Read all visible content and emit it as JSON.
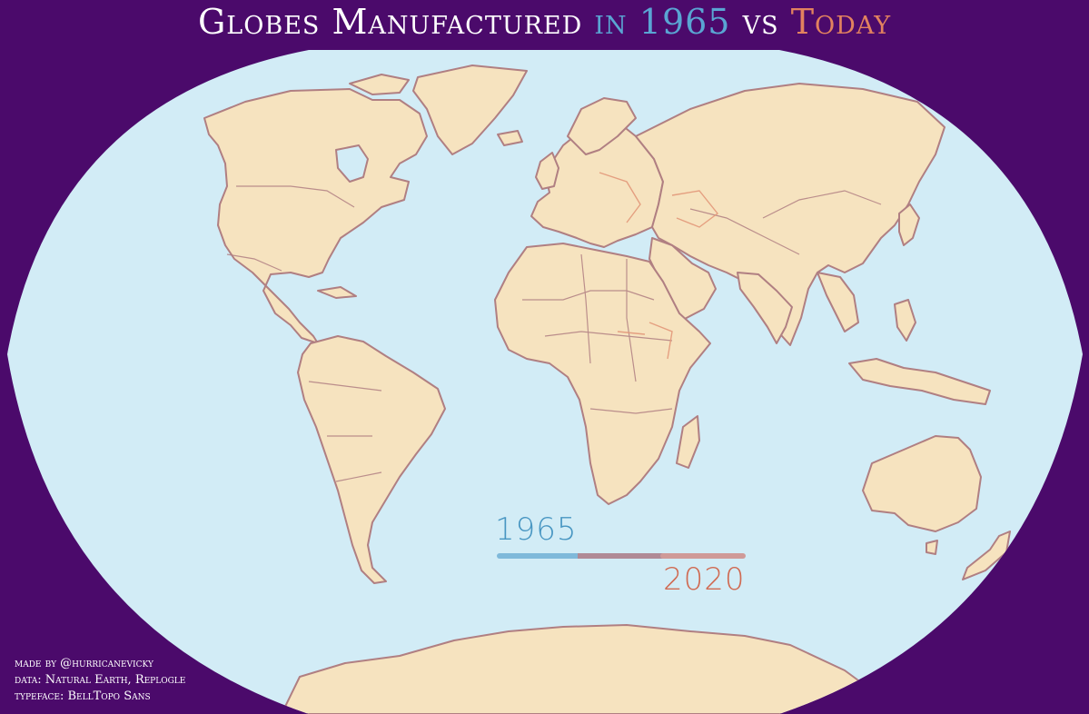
{
  "title": {
    "part1": "Globes Manufactured",
    "part2": "in",
    "part3": "1965",
    "part4": "vs",
    "part5": "Today"
  },
  "legend": {
    "start_label": "1965",
    "end_label": "2020"
  },
  "credits": [
    "made by @hurricanevicky",
    "data: Natural Earth, Replogle",
    "typeface: BellTopo Sans"
  ],
  "colors": {
    "background": "#4b0a6b",
    "ocean": "#d2ecf6",
    "land": "#f6e3bf",
    "border_1965": "#b07f82",
    "border_today": "#e3987a",
    "title_white": "#ffffff",
    "title_blue": "#5aa5d3",
    "title_orange": "#e2825f",
    "legend_blue": "#7fb9da",
    "legend_mix": "#b08a96",
    "legend_pink": "#cf9a98",
    "legend_1965_text": "#4896c2",
    "legend_2020_text": "#d06a52",
    "credits_text": "#ffffff"
  }
}
